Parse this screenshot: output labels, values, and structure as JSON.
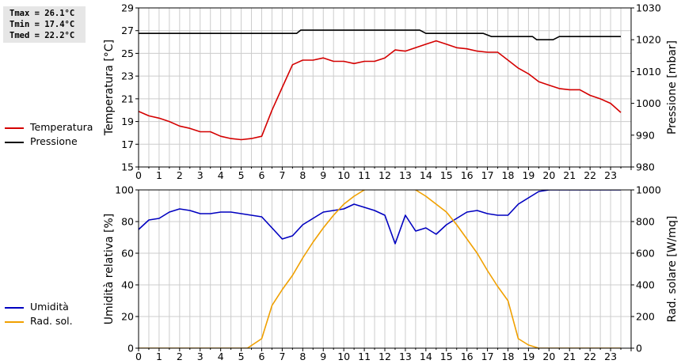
{
  "stats": {
    "tmax": "Tmax = 26.1°C",
    "tmin": "Tmin = 17.4°C",
    "tmed": "Tmed = 22.2°C"
  },
  "colors": {
    "temperature": "#d40000",
    "pressure": "#000000",
    "humidity": "#0000c0",
    "radiation": "#f0a000",
    "grid": "#cccccc"
  },
  "chart_data": [
    {
      "type": "line",
      "x_ticks": [
        0,
        1,
        2,
        3,
        4,
        5,
        6,
        7,
        8,
        9,
        10,
        11,
        12,
        13,
        14,
        15,
        16,
        17,
        18,
        19,
        20,
        21,
        22,
        23
      ],
      "xlim": [
        0,
        24
      ],
      "ylabel": "Temperatura [°C]",
      "ylim": [
        15,
        29
      ],
      "yticks": [
        15,
        17,
        19,
        21,
        23,
        25,
        27,
        29
      ],
      "y2label": "Pressione [mbar]",
      "y2lim": [
        980,
        1030
      ],
      "y2ticks": [
        980,
        990,
        1000,
        1010,
        1020,
        1030
      ],
      "grid": true,
      "legend_position": "left",
      "series": [
        {
          "name": "Temperatura",
          "axis": "left",
          "color": "#d40000",
          "x": [
            0,
            0.5,
            1,
            1.5,
            2,
            2.5,
            3,
            3.5,
            4,
            4.5,
            5,
            5.5,
            6,
            6.5,
            7,
            7.5,
            8,
            8.5,
            9,
            9.5,
            10,
            10.5,
            11,
            11.5,
            12,
            12.5,
            13,
            13.5,
            14,
            14.5,
            15,
            15.5,
            16,
            16.5,
            17,
            17.5,
            18,
            18.5,
            19,
            19.5,
            20,
            20.5,
            21,
            21.5,
            22,
            22.5,
            23,
            23.5
          ],
          "y": [
            19.9,
            19.5,
            19.3,
            19.0,
            18.6,
            18.4,
            18.1,
            18.1,
            17.7,
            17.5,
            17.4,
            17.5,
            17.7,
            20.0,
            22.0,
            24.0,
            24.4,
            24.4,
            24.6,
            24.3,
            24.3,
            24.1,
            24.3,
            24.3,
            24.6,
            25.3,
            25.2,
            25.5,
            25.8,
            26.1,
            25.8,
            25.5,
            25.4,
            25.2,
            25.1,
            25.1,
            24.4,
            23.7,
            23.2,
            22.5,
            22.2,
            21.9,
            21.8,
            21.8,
            21.3,
            21.0,
            20.6,
            19.8
          ]
        },
        {
          "name": "Pressione",
          "axis": "right",
          "color": "#000000",
          "x": [
            0,
            7.5,
            7.7,
            7.9,
            8.2,
            13.7,
            14,
            16.8,
            17.2,
            19.2,
            19.4,
            19.8,
            20.2,
            20.5,
            23.5
          ],
          "y": [
            1022,
            1022,
            1022,
            1023,
            1023,
            1023,
            1022,
            1022,
            1021,
            1021,
            1020,
            1020,
            1020,
            1021,
            1021
          ]
        }
      ]
    },
    {
      "type": "line",
      "x_ticks": [
        0,
        1,
        2,
        3,
        4,
        5,
        6,
        7,
        8,
        9,
        10,
        11,
        12,
        13,
        14,
        15,
        16,
        17,
        18,
        19,
        20,
        21,
        22,
        23
      ],
      "xlim": [
        0,
        24
      ],
      "ylabel": "Umidità relativa [%]",
      "ylim": [
        0,
        100
      ],
      "yticks": [
        0,
        20,
        40,
        60,
        80,
        100
      ],
      "y2label": "Rad. solare [W/mq]",
      "y2lim": [
        0,
        1000
      ],
      "y2ticks": [
        0,
        200,
        400,
        600,
        800,
        1000
      ],
      "grid": true,
      "legend_position": "left",
      "series": [
        {
          "name": "Umidità",
          "axis": "left",
          "color": "#0000c0",
          "x": [
            0,
            0.5,
            1,
            1.5,
            2,
            2.5,
            3,
            3.5,
            4,
            4.5,
            5,
            5.5,
            6,
            6.5,
            7,
            7.5,
            8,
            8.5,
            9,
            9.5,
            10,
            10.5,
            11,
            11.5,
            12,
            12.5,
            13,
            13.5,
            14,
            14.5,
            15,
            15.5,
            16,
            16.5,
            17,
            17.5,
            18,
            18.5,
            19,
            19.5,
            20,
            20.5,
            21,
            21.5,
            22,
            22.5,
            23,
            23.5
          ],
          "y": [
            75,
            81,
            82,
            86,
            88,
            87,
            85,
            85,
            86,
            86,
            85,
            84,
            83,
            76,
            69,
            71,
            78,
            82,
            86,
            87,
            88,
            91,
            89,
            87,
            84,
            66,
            84,
            74,
            76,
            72,
            78,
            82,
            86,
            87,
            85,
            84,
            84,
            91,
            95,
            99,
            100,
            100,
            100,
            100,
            100,
            100,
            100,
            100
          ]
        },
        {
          "name": "Rad. sol.",
          "axis": "right",
          "color": "#f0a000",
          "x": [
            0,
            1,
            2,
            3,
            4,
            5,
            5.3,
            6,
            6.5,
            7,
            7.5,
            8,
            8.5,
            9,
            9.5,
            10,
            10.5,
            11,
            11.5,
            12,
            12.5,
            13,
            13.5,
            14,
            14.5,
            15,
            15.5,
            16,
            16.5,
            17,
            17.5,
            18,
            18.5,
            19,
            19.5,
            20,
            21,
            22,
            23,
            23.5
          ],
          "y": [
            0,
            0,
            0,
            0,
            0,
            0,
            0,
            60,
            270,
            370,
            460,
            570,
            670,
            760,
            840,
            910,
            960,
            1000,
            1020,
            1030,
            1030,
            1030,
            1000,
            960,
            910,
            860,
            780,
            690,
            600,
            490,
            390,
            300,
            60,
            20,
            0,
            0,
            0,
            0,
            0,
            0
          ]
        }
      ]
    }
  ]
}
